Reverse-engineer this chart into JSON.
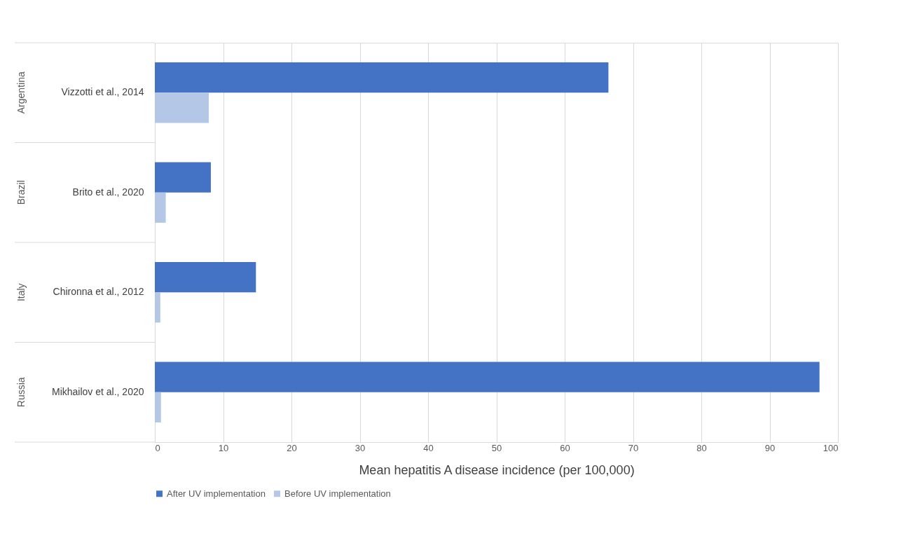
{
  "chart_data": {
    "type": "bar",
    "orientation": "horizontal",
    "xlabel": "Mean hepatitis A disease incidence (per 100,000)",
    "categories": [
      "Vizzotti et al., 2014",
      "Brito et al., 2020",
      "Chironna et al., 2012",
      "Mikhailov et al., 2020"
    ],
    "series": [
      {
        "name": "After UV implementation",
        "color": "#4472c4",
        "values": [
          66.4,
          8.2,
          14.8,
          97.3
        ]
      },
      {
        "name": "Before UV implementation",
        "color": "#b4c7e7",
        "values": [
          7.9,
          1.6,
          0.8,
          0.9
        ]
      }
    ],
    "xlim": [
      0,
      100
    ],
    "xticks": [
      0,
      10,
      20,
      30,
      40,
      50,
      60,
      70,
      80,
      90,
      100
    ],
    "grid": "x",
    "legend": "bottom",
    "annotations": [
      "Argentina",
      "Brazil",
      "Italy",
      "Russia"
    ]
  }
}
